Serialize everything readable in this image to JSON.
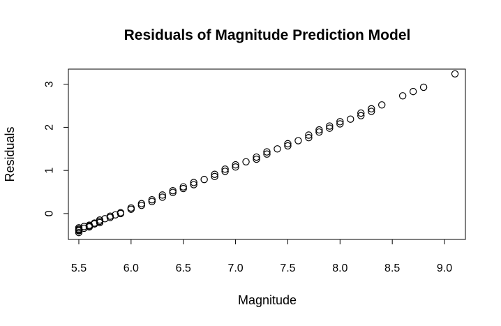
{
  "chart_data": {
    "type": "scatter",
    "title": "Residuals of Magnitude Prediction Model",
    "xlabel": "Magnitude",
    "ylabel": "Residuals",
    "xlim": [
      5.4,
      9.2
    ],
    "ylim": [
      -0.6,
      3.35
    ],
    "xticks": [
      5.5,
      6.0,
      6.5,
      7.0,
      7.5,
      8.0,
      8.5,
      9.0
    ],
    "xtick_labels": [
      "5.5",
      "6.0",
      "6.5",
      "7.0",
      "7.5",
      "8.0",
      "8.5",
      "9.0"
    ],
    "yticks": [
      0,
      1,
      2,
      3
    ],
    "ytick_labels": [
      "0",
      "1",
      "2",
      "3"
    ],
    "grid": false,
    "marker": "open-circle",
    "color": "#000000",
    "series": [
      {
        "x": [
          5.5,
          5.5,
          5.5,
          5.5,
          5.5,
          5.55,
          5.55,
          5.6,
          5.6,
          5.6,
          5.65,
          5.65,
          5.7,
          5.7,
          5.7,
          5.75,
          5.8,
          5.8,
          5.85,
          5.9,
          5.9,
          6.0,
          6.0,
          6.1,
          6.1,
          6.2,
          6.2,
          6.3,
          6.3,
          6.4,
          6.4,
          6.5,
          6.5,
          6.6,
          6.6,
          6.7,
          6.8,
          6.8,
          6.9,
          6.9,
          7.0,
          7.0,
          7.1,
          7.2,
          7.2,
          7.3,
          7.3,
          7.4,
          7.5,
          7.5,
          7.6,
          7.7,
          7.7,
          7.8,
          7.8,
          7.9,
          7.9,
          8.0,
          8.0,
          8.1,
          8.2,
          8.2,
          8.3,
          8.3,
          8.4,
          8.6,
          8.7,
          8.8,
          9.1
        ],
        "y": [
          -0.44,
          -0.4,
          -0.36,
          -0.38,
          -0.33,
          -0.34,
          -0.3,
          -0.31,
          -0.27,
          -0.29,
          -0.24,
          -0.22,
          -0.21,
          -0.18,
          -0.15,
          -0.12,
          -0.09,
          -0.06,
          -0.03,
          0.0,
          0.02,
          0.1,
          0.13,
          0.19,
          0.23,
          0.28,
          0.32,
          0.38,
          0.43,
          0.49,
          0.53,
          0.58,
          0.62,
          0.67,
          0.72,
          0.79,
          0.86,
          0.91,
          0.98,
          1.03,
          1.08,
          1.13,
          1.2,
          1.26,
          1.31,
          1.38,
          1.43,
          1.5,
          1.57,
          1.62,
          1.69,
          1.76,
          1.82,
          1.89,
          1.94,
          1.98,
          2.03,
          2.08,
          2.13,
          2.19,
          2.27,
          2.33,
          2.37,
          2.43,
          2.52,
          2.73,
          2.83,
          2.93,
          3.24
        ]
      }
    ]
  }
}
